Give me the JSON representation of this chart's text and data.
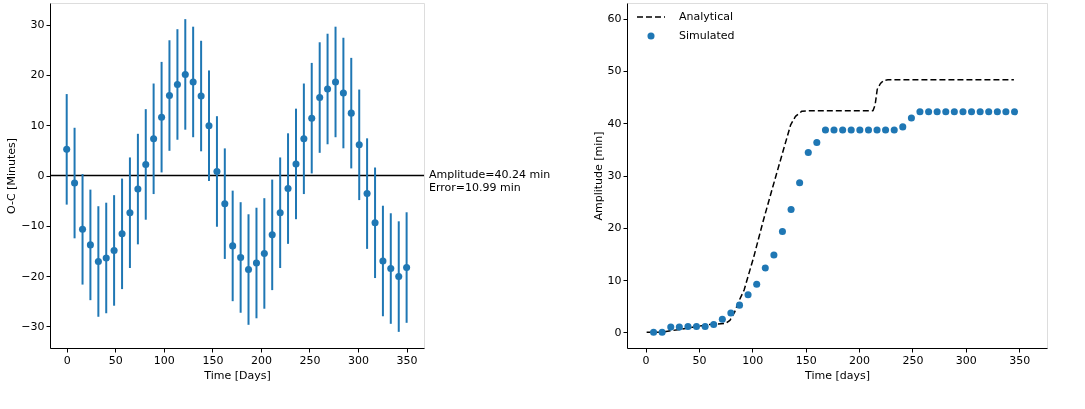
{
  "chart_data": [
    {
      "type": "scatter",
      "xlabel": "Time [Days]",
      "ylabel": "O-C [Minutes]",
      "xlim": [
        -17.2,
        367.9
      ],
      "ylim": [
        -34.3,
        34.3
      ],
      "xticks": [
        0,
        50,
        100,
        150,
        200,
        250,
        300,
        350
      ],
      "yticks": [
        {
          "value": -30,
          "label": "−30"
        },
        {
          "value": -20,
          "label": "−20"
        },
        {
          "value": -10,
          "label": "−10"
        },
        0,
        10,
        20,
        30
      ],
      "grid": false,
      "legend": false,
      "marker": "circle",
      "x": [
        0,
        8.1,
        16.3,
        24.4,
        32.6,
        40.7,
        48.8,
        57.0,
        65.1,
        73.3,
        81.4,
        89.5,
        97.7,
        105.8,
        114.0,
        122.1,
        130.2,
        138.4,
        146.5,
        154.7,
        162.8,
        170.9,
        179.1,
        187.2,
        195.4,
        203.5,
        211.6,
        219.8,
        227.9,
        236.1,
        244.2,
        252.3,
        260.5,
        268.6,
        276.8,
        284.9,
        293.0,
        301.2,
        309.3,
        317.5,
        325.6,
        333.7,
        341.9,
        350.0
      ],
      "series": [
        {
          "color": "#1f77b4",
          "values": [
            5.2,
            -1.5,
            -10.7,
            -13.8,
            -17.1,
            -16.4,
            -14.9,
            -11.6,
            -7.4,
            -2.7,
            2.2,
            7.3,
            11.6,
            15.9,
            18.1,
            20.1,
            18.6,
            15.8,
            9.9,
            0.8,
            -5.6,
            -14.0,
            -16.3,
            -18.7,
            -17.4,
            -15.5,
            -11.8,
            -7.4,
            -2.6,
            2.3,
            7.3,
            11.4,
            15.5,
            17.2,
            18.6,
            16.4,
            12.4,
            6.1,
            -3.6,
            -9.4,
            -17.0,
            -18.5,
            -20.1,
            -18.3
          ],
          "errors": [
            10.99,
            10.99,
            10.99,
            10.99,
            10.99,
            10.99,
            10.99,
            10.99,
            10.99,
            10.99,
            10.99,
            10.99,
            10.99,
            10.99,
            10.99,
            10.99,
            10.99,
            10.99,
            10.99,
            10.99,
            10.99,
            10.99,
            10.99,
            10.99,
            10.99,
            10.99,
            10.99,
            10.99,
            10.99,
            10.99,
            10.99,
            10.99,
            10.99,
            10.99,
            10.99,
            10.99,
            10.99,
            10.99,
            10.99,
            10.99,
            10.99,
            10.99,
            10.99,
            10.99
          ]
        }
      ],
      "ref_lines": [
        {
          "axis": "y",
          "value": 0,
          "color": "#000000",
          "line_style": "solid"
        }
      ],
      "annotations": [
        "Amplitude=40.24 min",
        "Error=10.99 min"
      ]
    },
    {
      "type": "scatter",
      "xlabel": "Time [days]",
      "ylabel": "Amplitude [min]",
      "xlim": [
        -17.4,
        376
      ],
      "ylim": [
        -3,
        63
      ],
      "xticks": [
        0,
        50,
        100,
        150,
        200,
        250,
        300,
        350
      ],
      "yticks": [
        0,
        10,
        20,
        30,
        40,
        50,
        60
      ],
      "grid": false,
      "legend": "top left",
      "series": [
        {
          "name": "Analytical",
          "type": "line",
          "color": "#000000",
          "line_style": "dashed",
          "marker": "none",
          "x": [
            1,
            15,
            30,
            45,
            60,
            75,
            79,
            83.3,
            87,
            92.3,
            101.3,
            110.3,
            119.4,
            128.4,
            135.9,
            140.4,
            146.4,
            155,
            213,
            215,
            217,
            220,
            223,
            227,
            345
          ],
          "values": [
            0,
            0,
            0.5,
            1.0,
            1.5,
            1.7,
            2.3,
            3.8,
            5.8,
            8.1,
            14.4,
            21.4,
            28.0,
            34.4,
            39.7,
            41.3,
            42.3,
            42.4,
            42.4,
            43.5,
            46.5,
            47.6,
            48.2,
            48.3,
            48.3
          ]
        },
        {
          "name": "Simulated",
          "type": "scatter",
          "color": "#1f77b4",
          "marker": "circle",
          "x": [
            7.5,
            15.5,
            23.6,
            31.6,
            39.7,
            47.7,
            55.8,
            63.8,
            71.9,
            79.9,
            88.0,
            96.0,
            104.1,
            112.1,
            120.2,
            128.2,
            136.3,
            144.3,
            152.4,
            160.4,
            168.5,
            176.5,
            184.6,
            192.6,
            200.7,
            208.8,
            216.8,
            224.8,
            232.9,
            240.9,
            249.0,
            257.0,
            265.1,
            273.1,
            281.2,
            289.2,
            297.3,
            305.3,
            313.4,
            321.4,
            329.5,
            337.5,
            345.6
          ],
          "values": [
            0,
            0,
            1.0,
            1.0,
            1.1,
            1.1,
            1.1,
            1.5,
            2.5,
            3.7,
            5.2,
            7.2,
            9.2,
            12.3,
            14.8,
            19.3,
            23.5,
            28.6,
            34.4,
            36.3,
            38.7,
            38.7,
            38.7,
            38.7,
            38.7,
            38.7,
            38.7,
            38.7,
            38.7,
            39.3,
            41.0,
            42.2,
            42.2,
            42.2,
            42.2,
            42.2,
            42.2,
            42.2,
            42.2,
            42.2,
            42.2,
            42.2,
            42.2
          ]
        }
      ]
    }
  ]
}
